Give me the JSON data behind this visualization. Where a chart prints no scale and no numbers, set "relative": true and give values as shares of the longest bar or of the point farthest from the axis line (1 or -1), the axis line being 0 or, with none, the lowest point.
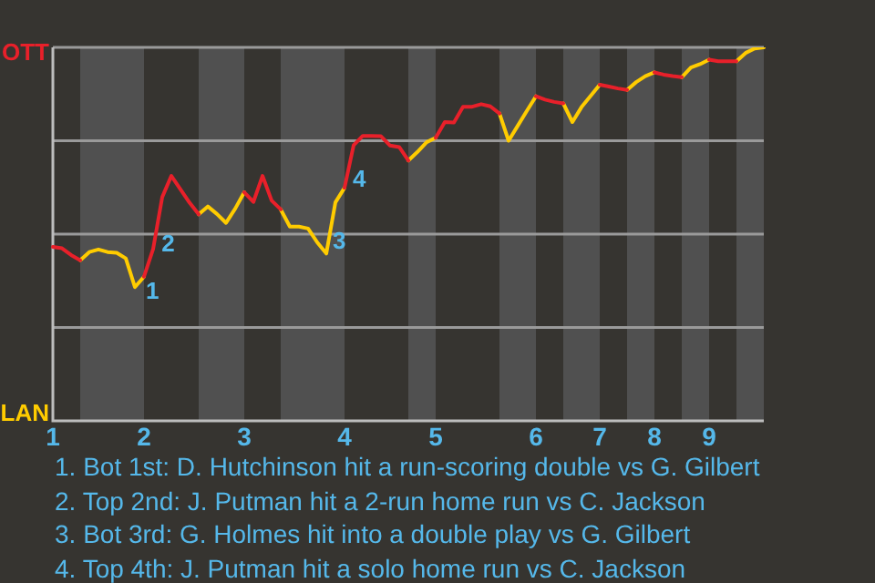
{
  "chart_data": {
    "type": "line",
    "relative": true,
    "grid": "y",
    "legend": "left",
    "marker": "none",
    "line_style": "solid",
    "categories": [
      "1",
      null,
      null,
      null,
      null,
      null,
      null,
      null,
      null,
      null,
      "2",
      null,
      null,
      null,
      null,
      null,
      null,
      null,
      null,
      null,
      null,
      "3",
      null,
      null,
      null,
      null,
      null,
      null,
      null,
      null,
      null,
      null,
      "4",
      null,
      null,
      null,
      null,
      null,
      null,
      null,
      null,
      null,
      "5",
      null,
      null,
      null,
      null,
      null,
      null,
      null,
      null,
      null,
      null,
      "6",
      null,
      null,
      null,
      null,
      null,
      null,
      "7",
      null,
      null,
      null,
      null,
      null,
      "8",
      null,
      null,
      null,
      null,
      null,
      "9",
      null,
      null,
      null,
      null,
      null,
      null
    ],
    "series": [
      {
        "name": "OTT",
        "color": "#e8202a",
        "values": [
          0.466,
          0.462,
          0.444,
          0.43,
          null,
          null,
          null,
          null,
          null,
          null,
          0.386,
          0.46,
          0.599,
          0.656,
          0.62,
          0.584,
          0.553,
          null,
          null,
          null,
          null,
          0.612,
          0.586,
          0.656,
          0.59,
          0.566,
          null,
          null,
          null,
          null,
          null,
          null,
          0.624,
          0.738,
          0.763,
          0.763,
          0.762,
          0.737,
          0.733,
          0.697,
          null,
          null,
          0.758,
          0.8,
          0.799,
          0.841,
          0.841,
          0.848,
          0.842,
          0.823,
          null,
          null,
          null,
          0.869,
          0.86,
          0.854,
          0.85,
          null,
          null,
          null,
          0.9,
          0.895,
          0.89,
          0.886,
          null,
          null,
          0.933,
          0.927,
          0.923,
          0.92,
          null,
          null,
          0.967,
          0.963,
          0.963,
          0.963,
          null,
          null,
          null
        ]
      },
      {
        "name": "LAN",
        "color": "#ffcc00",
        "values": [
          null,
          null,
          null,
          0.43,
          0.452,
          0.459,
          0.452,
          0.45,
          0.435,
          0.358,
          0.386,
          null,
          null,
          null,
          null,
          null,
          0.553,
          0.574,
          0.554,
          0.53,
          0.568,
          0.612,
          null,
          null,
          null,
          0.566,
          0.52,
          0.52,
          0.515,
          0.478,
          0.448,
          0.585,
          0.624,
          null,
          null,
          null,
          null,
          null,
          null,
          0.697,
          0.72,
          0.746,
          0.758,
          null,
          null,
          null,
          null,
          null,
          null,
          0.823,
          0.75,
          0.79,
          0.83,
          0.869,
          null,
          null,
          0.85,
          0.8,
          0.84,
          0.87,
          0.9,
          null,
          null,
          0.886,
          0.907,
          0.923,
          0.933,
          null,
          null,
          0.92,
          0.946,
          0.955,
          0.967,
          null,
          null,
          0.963,
          0.985,
          0.997,
          1
        ]
      }
    ],
    "annotations": [
      "1",
      "2",
      "3",
      "4",
      "1. Bot 1st: D. Hutchinson hit a run-scoring double vs G. Gilbert",
      "2. Top 2nd: J. Putman hit a 2-run home run vs C. Jackson",
      "3. Bot 3rd: G. Holmes hit into a double play vs G. Gilbert",
      "4. Top 4th: J. Putman hit a solo home run vs C. Jackson"
    ]
  }
}
